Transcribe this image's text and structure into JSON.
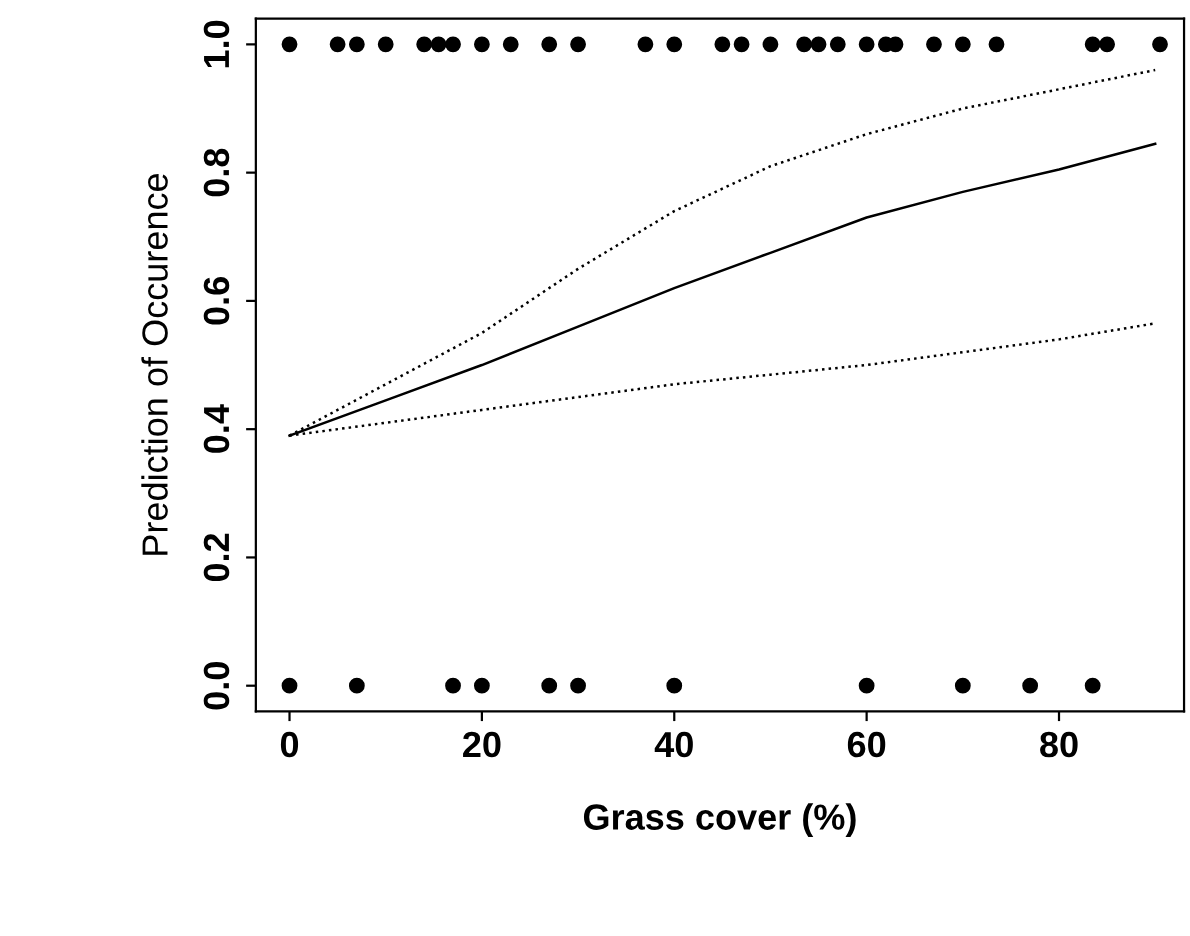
{
  "chart_data": {
    "type": "scatter",
    "xlabel": "Grass cover (%)",
    "ylabel": "Prediction of Occurence",
    "xlim": [
      -3.5,
      93
    ],
    "ylim": [
      -0.04,
      1.04
    ],
    "xticks": [
      0,
      20,
      40,
      60,
      80
    ],
    "yticks": [
      {
        "value": 0,
        "label": "0.0"
      },
      0.2,
      0.4,
      0.6,
      0.8,
      {
        "value": 1,
        "label": "1.0"
      }
    ],
    "grid": false,
    "legend": false,
    "series": [
      {
        "color": "#000000",
        "marker": "circle",
        "x": [
          0,
          5,
          7,
          10,
          14,
          15.5,
          17,
          20,
          23,
          27,
          30,
          37,
          40,
          45,
          47,
          50,
          53.5,
          55,
          57,
          60,
          62,
          63,
          67,
          70,
          73.5,
          83.5,
          85,
          90.5
        ],
        "values": [
          1,
          1,
          1,
          1,
          1,
          1,
          1,
          1,
          1,
          1,
          1,
          1,
          1,
          1,
          1,
          1,
          1,
          1,
          1,
          1,
          1,
          1,
          1,
          1,
          1,
          1,
          1,
          1
        ]
      },
      {
        "color": "#000000",
        "marker": "circle",
        "x": [
          0,
          7,
          17,
          20,
          27,
          30,
          40,
          60,
          70,
          77,
          83.5
        ],
        "values": [
          0,
          0,
          0,
          0,
          0,
          0,
          0,
          0,
          0,
          0,
          0
        ]
      },
      {
        "type": "line",
        "color": "#000000",
        "line_style": "solid",
        "x": [
          0,
          10,
          20,
          30,
          40,
          50,
          60,
          70,
          80,
          90
        ],
        "values": [
          0.39,
          0.445,
          0.5,
          0.56,
          0.62,
          0.675,
          0.73,
          0.77,
          0.805,
          0.845
        ]
      },
      {
        "type": "line",
        "color": "#000000",
        "line_style": "dotted",
        "x": [
          0,
          10,
          20,
          30,
          40,
          50,
          60,
          70,
          80,
          90
        ],
        "values": [
          0.39,
          0.41,
          0.43,
          0.45,
          0.47,
          0.485,
          0.5,
          0.52,
          0.54,
          0.565
        ]
      },
      {
        "type": "line",
        "color": "#000000",
        "line_style": "dotted",
        "x": [
          0,
          10,
          20,
          30,
          40,
          50,
          60,
          70,
          80,
          90
        ],
        "values": [
          0.39,
          0.47,
          0.55,
          0.65,
          0.74,
          0.81,
          0.86,
          0.9,
          0.93,
          0.96
        ]
      }
    ]
  }
}
